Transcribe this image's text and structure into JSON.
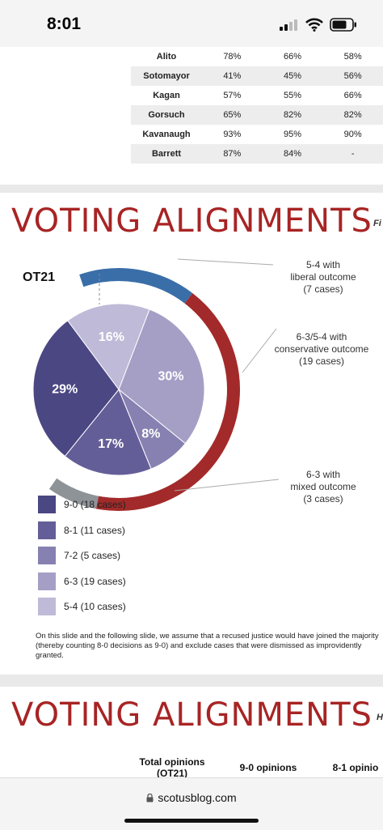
{
  "status_bar": {
    "time": "8:01"
  },
  "table": {
    "rows": [
      {
        "name": "Alito",
        "c1": "78%",
        "c2": "66%",
        "c3": "58%"
      },
      {
        "name": "Sotomayor",
        "c1": "41%",
        "c2": "45%",
        "c3": "56%"
      },
      {
        "name": "Kagan",
        "c1": "57%",
        "c2": "55%",
        "c3": "66%"
      },
      {
        "name": "Gorsuch",
        "c1": "65%",
        "c2": "82%",
        "c3": "82%"
      },
      {
        "name": "Kavanaugh",
        "c1": "93%",
        "c2": "95%",
        "c3": "90%"
      },
      {
        "name": "Barrett",
        "c1": "87%",
        "c2": "84%",
        "c3": "-"
      }
    ]
  },
  "slide2": {
    "heading": "VOTING ALIGNMENTS",
    "heading_cut": "Fi",
    "term": "OT21",
    "callouts": {
      "liberal": [
        "5-4 with",
        "liberal outcome",
        "(7 cases)"
      ],
      "conservative": [
        "6-3/5-4 with",
        "conservative outcome",
        "(19 cases)"
      ],
      "mixed": [
        "6-3 with",
        "mixed outcome",
        "(3 cases)"
      ]
    },
    "footnote": "On this slide and the following slide, we assume that a recused justice would have joined the majority (thereby counting 8-0 decisions as 9-0) and exclude cases that were dismissed as improvidently granted."
  },
  "chart_data": {
    "type": "pie",
    "title": "OT21",
    "categories": [
      "9-0 (18 cases)",
      "8-1 (11 cases)",
      "7-2 (5 cases)",
      "6-3 (19 cases)",
      "5-4 (10 cases)"
    ],
    "values": [
      29,
      17,
      8,
      30,
      16
    ],
    "slice_labels": [
      "29%",
      "17%",
      "8%",
      "30%",
      "16%"
    ],
    "colors": [
      "#4b4783",
      "#645e98",
      "#8781b1",
      "#a59fc6",
      "#bfbad7"
    ],
    "outer_ring": {
      "segments": [
        {
          "name": "5-4 with liberal outcome",
          "cases": 7,
          "color": "#3a6ea8"
        },
        {
          "name": "6-3/5-4 with conservative outcome",
          "cases": 19,
          "color": "#a32a2a"
        },
        {
          "name": "6-3 with mixed outcome",
          "cases": 3,
          "color": "#8e9398"
        }
      ]
    },
    "legend_position": "bottom-left"
  },
  "slide3": {
    "heading": "VOTING ALIGNMENTS",
    "heading_cut": "H",
    "columns": [
      "Total opinions\n(OT21)",
      "9-0 opinions",
      "8-1 opinio"
    ]
  },
  "browser": {
    "url": "scotusblog.com"
  }
}
